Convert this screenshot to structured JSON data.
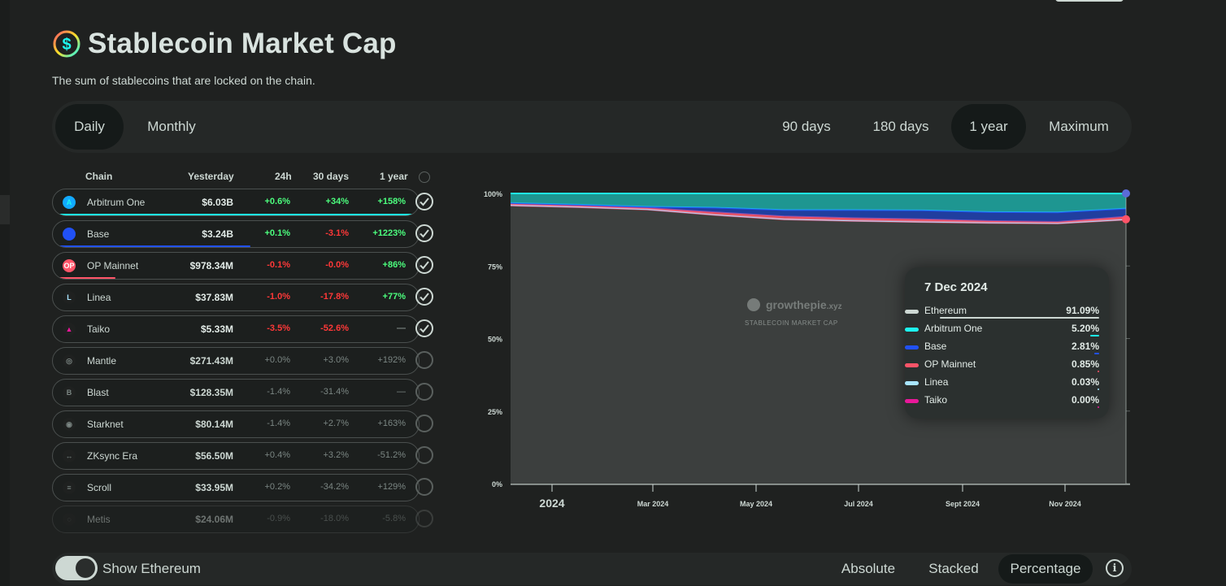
{
  "header": {
    "title": "Stablecoin Market Cap",
    "subtitle": "The sum of stablecoins that are locked on the chain."
  },
  "interval_tabs": [
    "Daily",
    "Monthly"
  ],
  "range_tabs": [
    "90 days",
    "180 days",
    "1 year",
    "Maximum"
  ],
  "active_interval": "Daily",
  "active_range": "1 year",
  "table": {
    "headers": {
      "chain": "Chain",
      "yesterday": "Yesterday",
      "d24": "24h",
      "d30": "30 days",
      "y1": "1 year"
    },
    "rows": [
      {
        "name": "Arbitrum One",
        "yesterday": "$6.03B",
        "d24": "+0.6%",
        "d30": "+34%",
        "y1": "+158%",
        "checked": true,
        "color": "#1df7ef",
        "bar": 1.0
      },
      {
        "name": "Base",
        "yesterday": "$3.24B",
        "d24": "+0.1%",
        "d30": "-3.1%",
        "y1": "+1223%",
        "checked": true,
        "color": "#2151f5",
        "bar": 0.54
      },
      {
        "name": "OP Mainnet",
        "yesterday": "$978.34M",
        "d24": "-0.1%",
        "d30": "-0.0%",
        "y1": "+86%",
        "checked": true,
        "color": "#fe5468",
        "bar": 0.17
      },
      {
        "name": "Linea",
        "yesterday": "$37.83M",
        "d24": "-1.0%",
        "d30": "-17.8%",
        "y1": "+77%",
        "checked": true,
        "color": "#a8e5ff",
        "bar": 0.0
      },
      {
        "name": "Taiko",
        "yesterday": "$5.33M",
        "d24": "-3.5%",
        "d30": "-52.6%",
        "y1": "—",
        "checked": true,
        "color": "#e81899",
        "bar": 0.0
      },
      {
        "name": "Mantle",
        "yesterday": "$271.43M",
        "d24": "+0.0%",
        "d30": "+3.0%",
        "y1": "+192%",
        "checked": false
      },
      {
        "name": "Blast",
        "yesterday": "$128.35M",
        "d24": "-1.4%",
        "d30": "-31.4%",
        "y1": "—",
        "checked": false
      },
      {
        "name": "Starknet",
        "yesterday": "$80.14M",
        "d24": "-1.4%",
        "d30": "+2.7%",
        "y1": "+163%",
        "checked": false
      },
      {
        "name": "ZKsync Era",
        "yesterday": "$56.50M",
        "d24": "+0.4%",
        "d30": "+3.2%",
        "y1": "-51.2%",
        "checked": false
      },
      {
        "name": "Scroll",
        "yesterday": "$33.95M",
        "d24": "+0.2%",
        "d30": "-34.2%",
        "y1": "+129%",
        "checked": false
      },
      {
        "name": "Metis",
        "yesterday": "$24.06M",
        "d24": "-0.9%",
        "d30": "-18.0%",
        "y1": "-5.8%",
        "checked": false
      }
    ]
  },
  "chart_data": {
    "type": "area",
    "y_tick_labels": [
      "100%",
      "75%",
      "50%",
      "25%",
      "0%"
    ],
    "x_tick_labels": [
      "2024",
      "Mar 2024",
      "May 2024",
      "Jul 2024",
      "Sept 2024",
      "Nov 2024"
    ],
    "ylim": [
      0,
      100
    ],
    "watermark": {
      "brand_a": "grow",
      "brand_b": "the",
      "brand_c": "pie",
      "brand_d": ".xyz",
      "caption": "STABLECOIN MARKET CAP"
    },
    "series": [
      {
        "name": "Ethereum",
        "color": "#cdd8d3",
        "values": [
          96.0,
          95.4,
          94.6,
          92.7,
          91.2,
          90.7,
          90.3,
          90.0,
          89.8,
          91.09
        ]
      },
      {
        "name": "Arbitrum One",
        "color": "#1df7ef",
        "values": [
          3.3,
          3.9,
          4.6,
          4.9,
          5.7,
          5.7,
          5.8,
          6.4,
          6.5,
          5.2
        ]
      },
      {
        "name": "Base",
        "color": "#2151f5",
        "values": [
          0.2,
          0.3,
          0.4,
          1.6,
          2.2,
          2.8,
          3.1,
          3.1,
          3.3,
          2.81
        ]
      },
      {
        "name": "OP Mainnet",
        "color": "#fe5468",
        "values": [
          0.5,
          0.4,
          0.4,
          0.8,
          0.9,
          0.8,
          0.8,
          0.5,
          0.4,
          0.85
        ]
      },
      {
        "name": "Linea",
        "color": "#a8e5ff",
        "values": [
          0.0,
          0.0,
          0.0,
          0.0,
          0.0,
          0.0,
          0.0,
          0.0,
          0.0,
          0.03
        ]
      },
      {
        "name": "Taiko",
        "color": "#e81899",
        "values": [
          0.0,
          0.0,
          0.0,
          0.0,
          0.0,
          0.0,
          0.0,
          0.0,
          0.0,
          0.0
        ]
      }
    ]
  },
  "tooltip": {
    "date": "7 Dec 2024",
    "rows": [
      {
        "name": "Ethereum",
        "value": "91.09%",
        "color": "#cdd8d3",
        "pct": 91.09
      },
      {
        "name": "Arbitrum One",
        "value": "5.20%",
        "color": "#1df7ef",
        "pct": 5.2
      },
      {
        "name": "Base",
        "value": "2.81%",
        "color": "#2151f5",
        "pct": 2.81
      },
      {
        "name": "OP Mainnet",
        "value": "0.85%",
        "color": "#fe5468",
        "pct": 0.85
      },
      {
        "name": "Linea",
        "value": "0.03%",
        "color": "#a8e5ff",
        "pct": 0.03
      },
      {
        "name": "Taiko",
        "value": "0.00%",
        "color": "#e81899",
        "pct": 0.0
      }
    ]
  },
  "bottom": {
    "toggle_label": "Show Ethereum",
    "toggle_on": true,
    "modes": [
      "Absolute",
      "Stacked",
      "Percentage"
    ],
    "active_mode": "Percentage",
    "info_glyph": "i"
  }
}
